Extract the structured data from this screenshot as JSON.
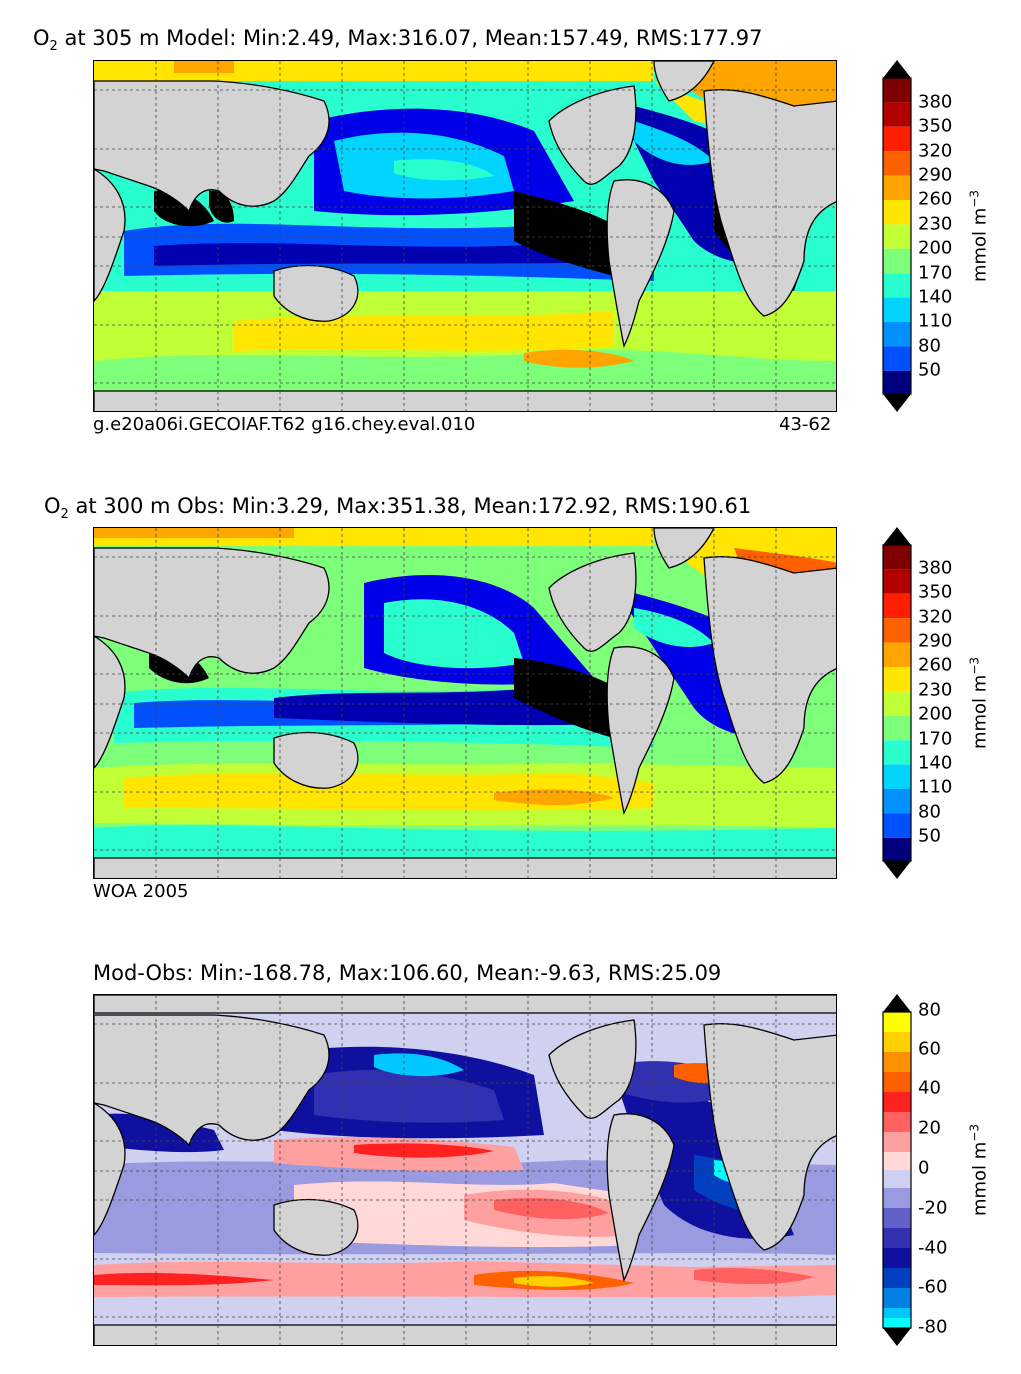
{
  "panels": [
    {
      "title_prefix": "O",
      "title_subscript": "2",
      "title_rest": " at 305 m Model: Min:2.49, Max:316.07, Mean:157.49, RMS:177.97",
      "caption_left": "g.e20a06i.GECOIAF.T62 g16.chey.eval.010",
      "caption_right": "43-62",
      "colorbar": {
        "ticks": [
          "380",
          "350",
          "320",
          "290",
          "260",
          "230",
          "200",
          "170",
          "140",
          "110",
          "80",
          "50"
        ],
        "label": "mmol m",
        "label_exp": "−3",
        "extend": "both"
      }
    },
    {
      "title_prefix": "O",
      "title_subscript": "2",
      "title_rest": " at 300 m Obs: Min:3.29, Max:351.38, Mean:172.92, RMS:190.61",
      "caption_left": "WOA 2005",
      "caption_right": "",
      "colorbar": {
        "ticks": [
          "380",
          "350",
          "320",
          "290",
          "260",
          "230",
          "200",
          "170",
          "140",
          "110",
          "80",
          "50"
        ],
        "label": "mmol m",
        "label_exp": "−3",
        "extend": "both"
      }
    },
    {
      "title_prefix": "",
      "title_subscript": "",
      "title_rest": "Mod-Obs: Min:-168.78, Max:106.60, Mean:-9.63, RMS:25.09",
      "caption_left": "",
      "caption_right": "",
      "colorbar": {
        "ticks": [
          "80",
          "60",
          "40",
          "20",
          "0",
          "-20",
          "-40",
          "-60",
          "-80"
        ],
        "label": "mmol m",
        "label_exp": "−3",
        "extend": "both"
      }
    }
  ],
  "colors": {
    "land": "#d3d3d3",
    "o2_scale": [
      "#00007f",
      "#0000b0",
      "#0000e8",
      "#0050ff",
      "#0090ff",
      "#00d4ff",
      "#29ffce",
      "#7dff7a",
      "#c0ff36",
      "#ffe500",
      "#ffa500",
      "#ff6000",
      "#ff1e00",
      "#b20000",
      "#7f0000"
    ],
    "diff_scale": [
      "#00ffff",
      "#00c8ff",
      "#0080e0",
      "#0040c0",
      "#1010a0",
      "#3030b0",
      "#6060c8",
      "#9a9ae0",
      "#d0d0f0",
      "#ffd8d8",
      "#ffa0a0",
      "#ff6060",
      "#ff2020",
      "#ff6000",
      "#ff9000",
      "#ffd000",
      "#ffff00"
    ]
  }
}
